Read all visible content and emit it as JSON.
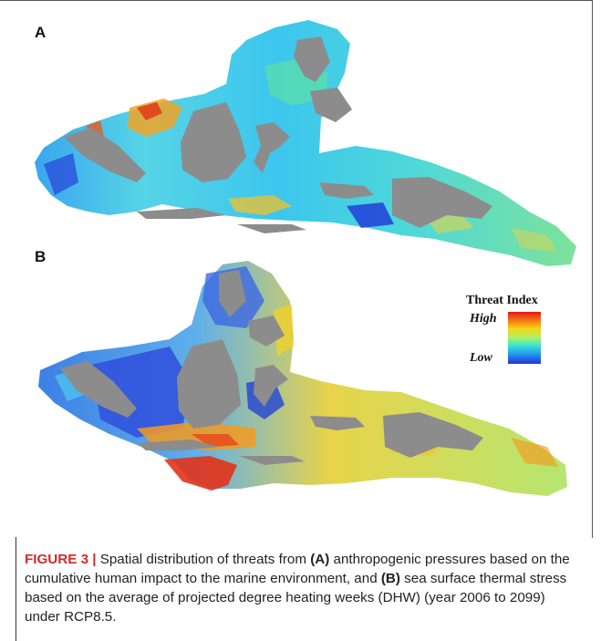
{
  "panels": {
    "a_label": "A",
    "b_label": "B"
  },
  "legend": {
    "title": "Threat Index",
    "high": "High",
    "low": "Low",
    "gradient_colors": [
      "#e21a1a",
      "#f36f15",
      "#f5d617",
      "#a8f26a",
      "#3ee6cd",
      "#26a0ef",
      "#1f35d8"
    ]
  },
  "colors": {
    "land": "#8c8c8c",
    "high": "#e21a1a",
    "low": "#1f35d8",
    "caption_label": "#d12a2a"
  },
  "caption": {
    "figure_label": "FIGURE 3 |",
    "text_1": " Spatial distribution of threats from ",
    "bold_a": "(A)",
    "text_2": " anthropogenic pressures based on the cumulative human impact to the marine environment, and ",
    "bold_b": "(B)",
    "text_3": " sea surface thermal stress based on the average of projected degree heating weeks (DHW) (year 2006 to 2099) under RCP8.5."
  }
}
